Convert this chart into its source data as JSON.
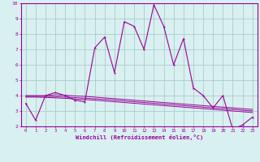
{
  "x": [
    0,
    1,
    2,
    3,
    4,
    5,
    6,
    7,
    8,
    9,
    10,
    11,
    12,
    13,
    14,
    15,
    16,
    17,
    18,
    19,
    20,
    21,
    22,
    23
  ],
  "y_main": [
    3.5,
    2.4,
    4.0,
    4.2,
    4.0,
    3.7,
    3.6,
    7.1,
    7.8,
    5.5,
    8.8,
    8.5,
    7.0,
    9.9,
    8.5,
    6.0,
    7.7,
    4.5,
    4.0,
    3.2,
    4.0,
    1.8,
    2.1,
    2.6
  ],
  "y_line1": [
    4.0,
    4.0,
    4.0,
    4.05,
    4.02,
    3.98,
    3.95,
    3.9,
    3.85,
    3.8,
    3.75,
    3.7,
    3.65,
    3.6,
    3.55,
    3.5,
    3.45,
    3.4,
    3.35,
    3.3,
    3.25,
    3.2,
    3.15,
    3.1
  ],
  "y_line2": [
    3.95,
    3.95,
    3.95,
    3.93,
    3.9,
    3.87,
    3.83,
    3.79,
    3.75,
    3.7,
    3.65,
    3.6,
    3.55,
    3.5,
    3.45,
    3.4,
    3.35,
    3.3,
    3.25,
    3.2,
    3.15,
    3.1,
    3.05,
    3.0
  ],
  "y_line3": [
    3.9,
    3.9,
    3.88,
    3.85,
    3.82,
    3.78,
    3.74,
    3.7,
    3.65,
    3.6,
    3.55,
    3.5,
    3.45,
    3.4,
    3.35,
    3.3,
    3.25,
    3.2,
    3.15,
    3.1,
    3.05,
    3.0,
    2.95,
    2.9
  ],
  "line_color": "#990099",
  "bg_color": "#d9f0f0",
  "grid_color": "#aacccc",
  "xlabel": "Windchill (Refroidissement éolien,°C)",
  "xlim": [
    0,
    23
  ],
  "ylim": [
    2,
    10
  ],
  "yticks": [
    2,
    3,
    4,
    5,
    6,
    7,
    8,
    9,
    10
  ],
  "xticks": [
    0,
    1,
    2,
    3,
    4,
    5,
    6,
    7,
    8,
    9,
    10,
    11,
    12,
    13,
    14,
    15,
    16,
    17,
    18,
    19,
    20,
    21,
    22,
    23
  ]
}
